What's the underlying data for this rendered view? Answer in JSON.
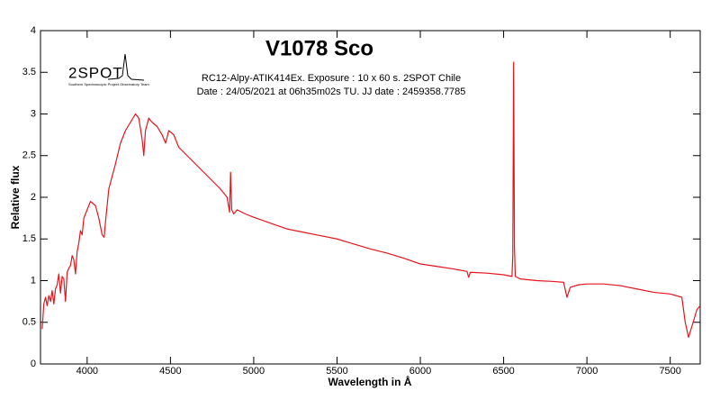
{
  "chart_data": {
    "type": "line",
    "title": "V1078 Sco",
    "subtitle": [
      "RC12-Alpy-ATIK414Ex. Exposure : 10 x 60 s. 2SPOT Chile",
      "Date : 24/05/2021 at 06h35m02s TU. JJ date : 2459358.7785"
    ],
    "logo": "2SPOT",
    "logo_subtitle": "Southern Spectroscopic Project Observatory Team",
    "x_label": "Wavelength in Å",
    "y_label": "Relative flux",
    "color": "#e8141c",
    "xlim": [
      3720,
      7680
    ],
    "ylim": [
      0,
      4
    ],
    "xticks": [
      4000,
      4500,
      5000,
      5500,
      6000,
      6500,
      7000,
      7500
    ],
    "yticks": [
      0,
      0.5,
      1,
      1.5,
      2,
      2.5,
      3,
      3.5,
      4
    ],
    "x": [
      3730,
      3740,
      3750,
      3760,
      3770,
      3780,
      3790,
      3800,
      3810,
      3820,
      3830,
      3840,
      3850,
      3860,
      3870,
      3880,
      3890,
      3900,
      3910,
      3920,
      3930,
      3940,
      3950,
      3960,
      3970,
      3980,
      3990,
      4000,
      4020,
      4050,
      4070,
      4090,
      4102,
      4110,
      4130,
      4150,
      4170,
      4200,
      4230,
      4260,
      4290,
      4310,
      4330,
      4340,
      4350,
      4370,
      4390,
      4420,
      4450,
      4471,
      4490,
      4520,
      4550,
      4600,
      4650,
      4700,
      4750,
      4800,
      4840,
      4855,
      4861,
      4868,
      4880,
      4900,
      4950,
      5000,
      5100,
      5200,
      5300,
      5400,
      5500,
      5600,
      5700,
      5800,
      5900,
      6000,
      6100,
      6200,
      6280,
      6290,
      6300,
      6400,
      6500,
      6550,
      6555,
      6560,
      6565,
      6570,
      6600,
      6700,
      6800,
      6860,
      6880,
      6900,
      6950,
      7000,
      7100,
      7200,
      7300,
      7400,
      7500,
      7570,
      7590,
      7610,
      7630,
      7660,
      7680
    ],
    "values": [
      0.42,
      0.72,
      0.8,
      0.7,
      0.82,
      0.75,
      0.88,
      0.72,
      0.9,
      0.95,
      1.08,
      0.85,
      1.05,
      1.02,
      0.75,
      1.1,
      1.15,
      1.18,
      1.3,
      1.25,
      1.08,
      1.35,
      1.45,
      1.6,
      1.55,
      1.75,
      1.8,
      1.85,
      1.95,
      1.9,
      1.75,
      1.55,
      1.52,
      1.7,
      2.1,
      2.25,
      2.4,
      2.65,
      2.8,
      2.9,
      3.0,
      2.95,
      2.7,
      2.5,
      2.8,
      2.95,
      2.9,
      2.85,
      2.75,
      2.65,
      2.8,
      2.75,
      2.6,
      2.5,
      2.4,
      2.3,
      2.2,
      2.1,
      2.0,
      1.82,
      2.3,
      1.85,
      1.8,
      1.85,
      1.8,
      1.76,
      1.69,
      1.62,
      1.58,
      1.54,
      1.5,
      1.44,
      1.38,
      1.33,
      1.27,
      1.2,
      1.17,
      1.14,
      1.11,
      1.04,
      1.1,
      1.09,
      1.07,
      1.05,
      1.3,
      3.62,
      1.4,
      1.05,
      1.02,
      1.0,
      0.99,
      0.98,
      0.8,
      0.92,
      0.95,
      0.96,
      0.96,
      0.94,
      0.9,
      0.86,
      0.84,
      0.8,
      0.5,
      0.32,
      0.45,
      0.65,
      0.7
    ]
  }
}
